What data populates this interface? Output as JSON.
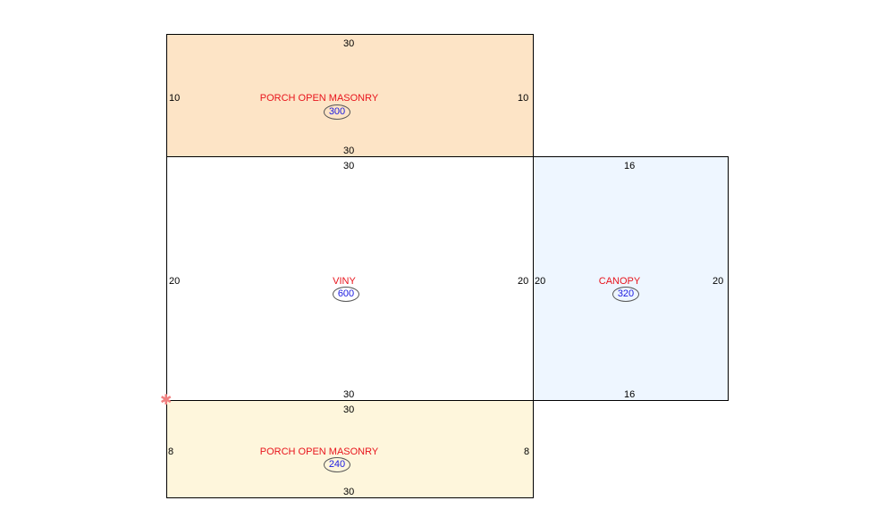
{
  "colors": {
    "label": "#e8141c",
    "sqft": "#1a1ae0",
    "porch_top_fill": "#fde4c6",
    "main_fill": "#ffffff",
    "canopy_fill": "#eef6ff",
    "porch_bottom_fill": "#fef6dc",
    "marker": "#f08080"
  },
  "areas": {
    "porch_top": {
      "name": "PORCH OPEN MASONRY",
      "sqft": "300",
      "dims": {
        "top": "30",
        "bottom": "30",
        "left": "10",
        "right": "10"
      }
    },
    "main": {
      "name": "VINY",
      "sqft": "600",
      "dims": {
        "top": "30",
        "bottom": "30",
        "left": "20",
        "right": "20"
      }
    },
    "canopy": {
      "name": "CANOPY",
      "sqft": "320",
      "dims": {
        "top": "16",
        "bottom": "16",
        "left": "20",
        "right": "20"
      }
    },
    "porch_bottom": {
      "name": "PORCH OPEN MASONRY",
      "sqft": "240",
      "dims": {
        "top": "30",
        "bottom": "30",
        "left": "8",
        "right": "8"
      }
    }
  },
  "marker": {
    "icon": "asterisk-icon",
    "glyph": "✱"
  }
}
